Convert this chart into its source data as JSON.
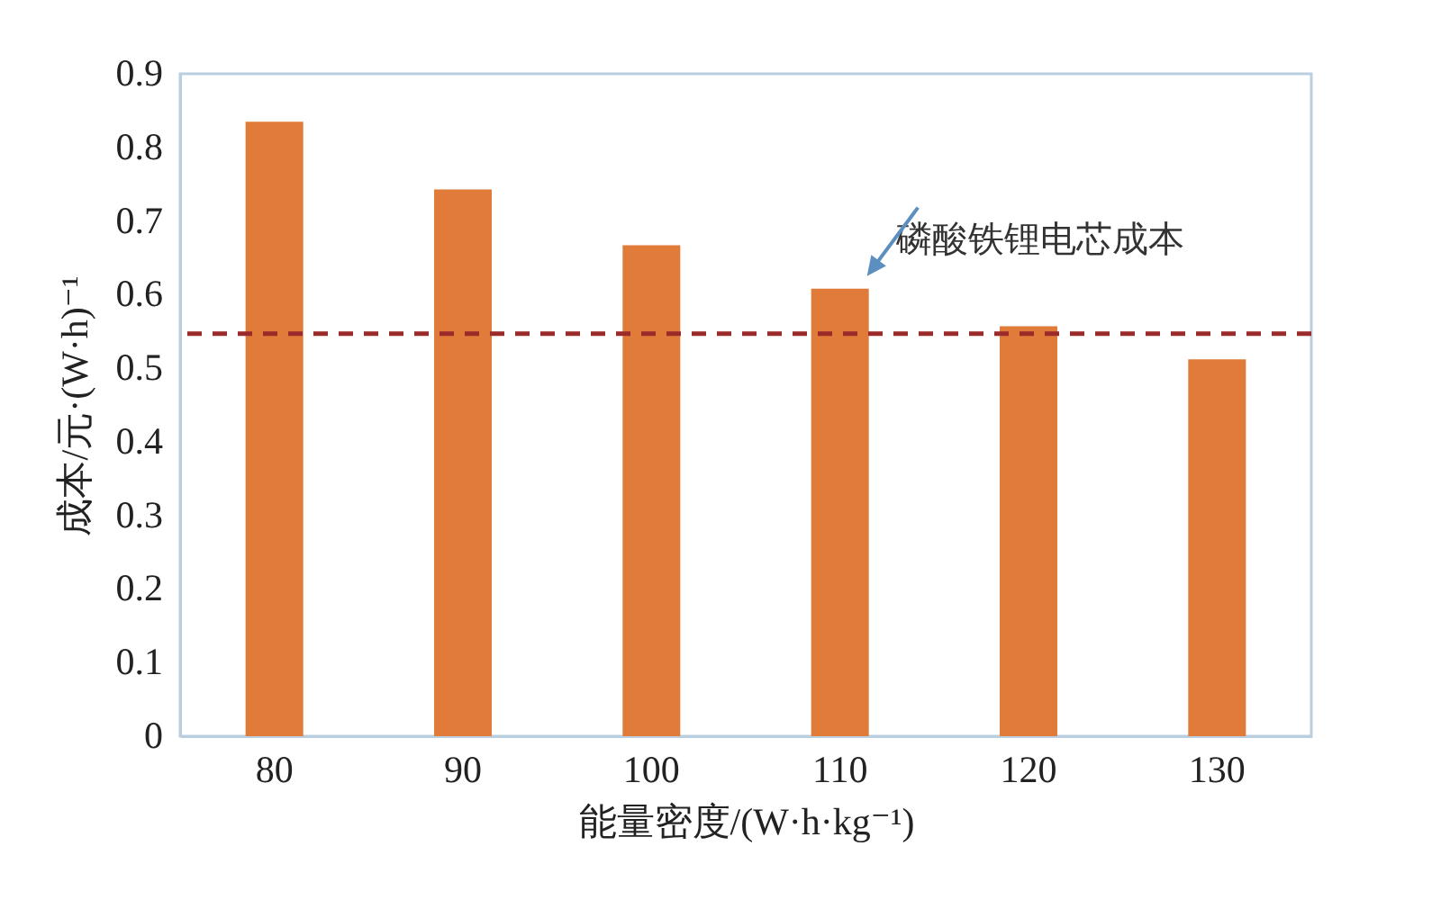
{
  "chart_data": {
    "type": "bar",
    "xlabel": "能量密度/(W·h·kg⁻¹)",
    "ylabel": "成本/元·(W·h)⁻¹",
    "categories": [
      "80",
      "90",
      "100",
      "110",
      "120",
      "130"
    ],
    "values": [
      0.835,
      0.743,
      0.667,
      0.608,
      0.557,
      0.512
    ],
    "color": "#e07b39",
    "ylim": [
      0,
      0.9
    ],
    "yticks": [
      0,
      0.1,
      0.2,
      0.3,
      0.4,
      0.5,
      0.6,
      0.7,
      0.8,
      0.9
    ],
    "grid": false,
    "ref_lines": [
      {
        "axis": "y",
        "value": 0.547,
        "label": "磷酸铁锂电芯成本",
        "color": "#9b2a2a",
        "line_style": "dashed"
      }
    ]
  }
}
